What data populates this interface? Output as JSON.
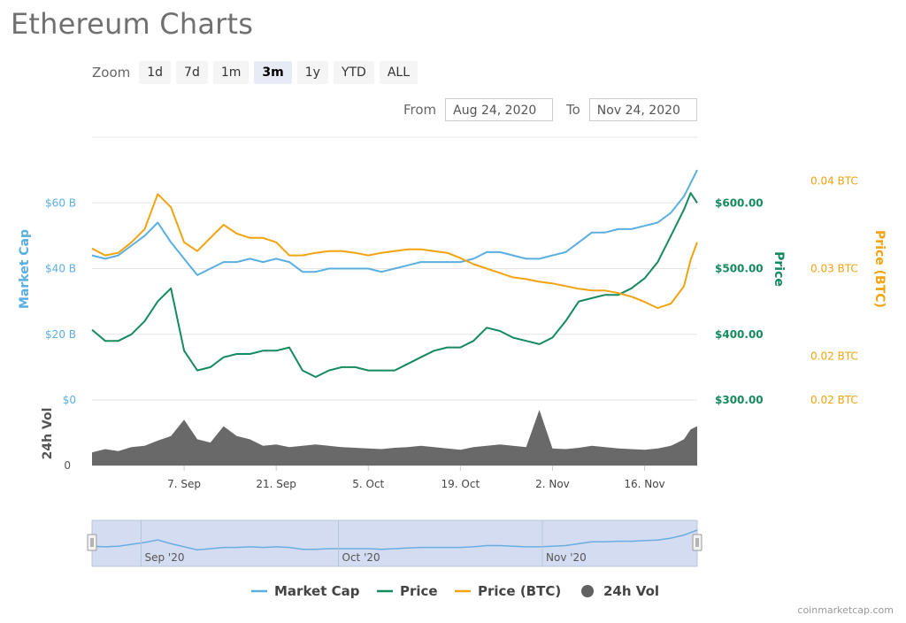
{
  "page": {
    "title": "Ethereum Charts"
  },
  "zoom": {
    "label": "Zoom",
    "buttons": [
      "1d",
      "7d",
      "1m",
      "3m",
      "1y",
      "YTD",
      "ALL"
    ],
    "active": "3m"
  },
  "range": {
    "from_label": "From",
    "from_value": "Aug 24, 2020",
    "to_label": "To",
    "to_value": "Nov 24, 2020"
  },
  "credit": "coinmarketcap.com",
  "colors": {
    "market_cap": "#5aafe0",
    "price": "#148a5e",
    "price_btc": "#f2a30f",
    "volume": "#616161",
    "navigator_fill": "#d3dcf0",
    "navigator_line": "#6aaee0"
  },
  "chart_data": {
    "type": "line",
    "title": "Ethereum Charts",
    "x_range": [
      "Aug 24, 2020",
      "Nov 24, 2020"
    ],
    "x_ticks": [
      "7. Sep",
      "21. Sep",
      "5. Oct",
      "19. Oct",
      "2. Nov",
      "16. Nov"
    ],
    "x_tick_days": [
      14,
      28,
      42,
      56,
      70,
      84
    ],
    "axes": {
      "market_cap": {
        "label": "Market Cap",
        "ticks": [
          "$0",
          "$20 B",
          "$40 B",
          "$60 B"
        ],
        "ylim": [
          0,
          80
        ]
      },
      "price": {
        "label": "Price",
        "ticks": [
          "$300.00",
          "$400.00",
          "$500.00",
          "$600.00"
        ],
        "ylim": [
          300,
          700
        ]
      },
      "price_btc": {
        "label": "Price (BTC)",
        "ticks": [
          "0.02 BTC",
          "0.02 BTC",
          "0.03 BTC",
          "0.04 BTC"
        ],
        "ylim": [
          0.015,
          0.045
        ]
      },
      "volume": {
        "label": "24h Vol",
        "ticks": [
          "0"
        ]
      }
    },
    "grid": true,
    "legend_position": "bottom-center",
    "navigator_labels": [
      "Sep '20",
      "Oct '20",
      "Nov '20"
    ],
    "navigator_label_days": [
      8,
      38,
      69
    ],
    "x_days": [
      0,
      2,
      4,
      6,
      8,
      10,
      12,
      14,
      16,
      18,
      20,
      22,
      24,
      26,
      28,
      30,
      32,
      34,
      36,
      38,
      40,
      42,
      44,
      46,
      48,
      50,
      52,
      54,
      56,
      58,
      60,
      62,
      64,
      66,
      68,
      70,
      72,
      74,
      76,
      78,
      80,
      82,
      84,
      86,
      88,
      90,
      91,
      92
    ],
    "series": [
      {
        "name": "Market Cap",
        "axis": "market_cap",
        "values": [
          44,
          43,
          44,
          47,
          50,
          54,
          48,
          43,
          38,
          40,
          42,
          42,
          43,
          42,
          43,
          42,
          39,
          39,
          40,
          40,
          40,
          40,
          39,
          40,
          41,
          42,
          42,
          42,
          42,
          43,
          45,
          45,
          44,
          43,
          43,
          44,
          45,
          48,
          51,
          51,
          52,
          52,
          53,
          54,
          57,
          62,
          66,
          70
        ]
      },
      {
        "name": "Price",
        "axis": "price",
        "values": [
          407,
          390,
          390,
          400,
          420,
          450,
          470,
          375,
          345,
          350,
          365,
          370,
          370,
          375,
          375,
          380,
          345,
          335,
          345,
          350,
          350,
          345,
          345,
          345,
          355,
          365,
          375,
          380,
          380,
          390,
          410,
          405,
          395,
          390,
          385,
          395,
          420,
          450,
          455,
          460,
          460,
          470,
          485,
          510,
          550,
          590,
          615,
          600
        ]
      },
      {
        "name": "Price (BTC)",
        "axis": "price_btc",
        "values": [
          0.0323,
          0.0315,
          0.0318,
          0.033,
          0.0345,
          0.0385,
          0.037,
          0.033,
          0.032,
          0.0335,
          0.035,
          0.034,
          0.0335,
          0.0335,
          0.033,
          0.0315,
          0.0315,
          0.0318,
          0.032,
          0.032,
          0.0318,
          0.0315,
          0.0318,
          0.032,
          0.0322,
          0.0322,
          0.032,
          0.0318,
          0.0312,
          0.0305,
          0.03,
          0.0295,
          0.029,
          0.0288,
          0.0285,
          0.0283,
          0.028,
          0.0277,
          0.0275,
          0.0275,
          0.0272,
          0.0268,
          0.0262,
          0.0255,
          0.026,
          0.028,
          0.031,
          0.033
        ]
      },
      {
        "name": "24h Vol",
        "axis": "volume",
        "values": [
          0.2,
          0.25,
          0.22,
          0.28,
          0.3,
          0.38,
          0.45,
          0.7,
          0.4,
          0.35,
          0.6,
          0.45,
          0.4,
          0.3,
          0.32,
          0.28,
          0.3,
          0.32,
          0.3,
          0.28,
          0.27,
          0.26,
          0.25,
          0.27,
          0.28,
          0.3,
          0.28,
          0.26,
          0.24,
          0.28,
          0.3,
          0.32,
          0.3,
          0.28,
          0.85,
          0.26,
          0.25,
          0.27,
          0.3,
          0.28,
          0.26,
          0.25,
          0.24,
          0.26,
          0.3,
          0.4,
          0.55,
          0.6
        ]
      }
    ]
  }
}
